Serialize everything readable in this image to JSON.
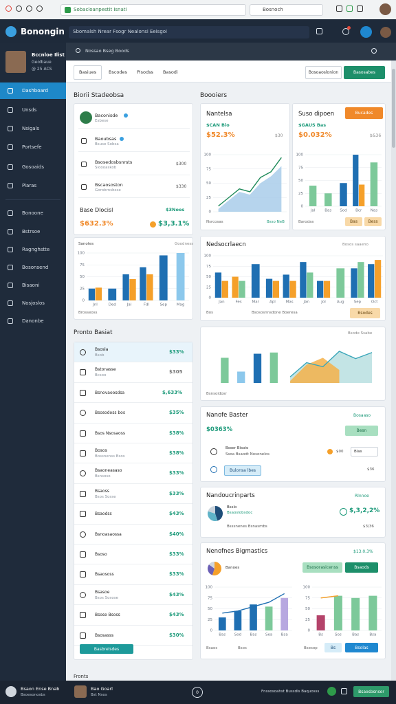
{
  "browser": {
    "url": "Sobacloanpestit Isnati",
    "search": "Bosnoch"
  },
  "sidebar": {
    "brand": "Bonongin",
    "user": {
      "name": "Bccnloe Ilist",
      "role": "Geolbaue",
      "id": "@ 25 ACS"
    },
    "menu": [
      "Dashboard",
      "Unsds",
      "Nsigals",
      "Portsefe",
      "Gosoaids",
      "Piaras",
      "Bonoone",
      "Bstrsoe",
      "Ragnghstte",
      "Bosonsend",
      "Bisaoni",
      "Nosjoslos",
      "Danonbe"
    ]
  },
  "header": {
    "search": "Sbomalsh Nrear Fsogr Nealonsi Eeisgoi"
  },
  "toolbar": {
    "search": "Nossao Bseg Boods",
    "tabs": [
      "Basiues",
      "Bscodes",
      "Pisodss",
      "Basodi"
    ],
    "buttons": [
      "Bosoaoslonion",
      "Basosabes"
    ]
  },
  "left": {
    "title": "Biorii Stadeobsa",
    "people": [
      {
        "name": "Baconisde",
        "sub": "Esbese"
      },
      {
        "name": "Baoubsas",
        "sub": "Bsuse Sobsa"
      },
      {
        "name": "Bsosedosbsnrsts",
        "sub": "Sioooaskob",
        "value": "$300"
      },
      {
        "name": "Bscaososton",
        "sub": "Gorobrnsbsse",
        "value": "$330"
      }
    ],
    "summary": {
      "title": "Base Dlocisl",
      "tag": "$3Noes",
      "value_a": "$632.3%",
      "value_b": "$3,3.1%"
    },
    "chart": {
      "title": "Sanotes",
      "note": "Goodness",
      "footer": "Brosseoss",
      "ylim": [
        0,
        100
      ],
      "yticks": [
        0,
        25,
        50,
        75,
        100
      ],
      "categories": [
        "Jnl",
        "Ded",
        "Jal",
        "Fdl",
        "Sep",
        "Mag"
      ],
      "series": [
        {
          "kind": "bar",
          "color": "#1f6fb2",
          "values": [
            25,
            25,
            55,
            70,
            95,
            null
          ]
        },
        {
          "kind": "bar",
          "color": "#f5a02a",
          "values": [
            27,
            null,
            45,
            55,
            null,
            null
          ]
        },
        {
          "kind": "bar",
          "color": "#8cc8ec",
          "values": [
            null,
            null,
            null,
            null,
            null,
            100
          ]
        }
      ]
    },
    "list": {
      "title": "Pronto Basiat",
      "button": "Basbrelsdes",
      "rows": [
        {
          "name": "Bsosla",
          "sub": "Bsob",
          "value": "$33%"
        },
        {
          "name": "Bstonasse",
          "sub": "Bcsoo",
          "value": "$305"
        },
        {
          "name": "Bsnovaoosdsa",
          "value": "$,633%"
        },
        {
          "name": "Bsosodoss bos",
          "value": "$35%"
        },
        {
          "name": "Bsos Nsosaoss",
          "value": "$38%"
        },
        {
          "name": "Bosos",
          "sub": "Bossnenss Bsos",
          "value": "$38%"
        },
        {
          "name": "Bsaoneasaso",
          "sub": "Bsnsoso",
          "value": "$33%"
        },
        {
          "name": "Bsaoss",
          "sub": "Bsos Sosse",
          "value": "$33%"
        },
        {
          "name": "Bsaodss",
          "value": "$43%"
        },
        {
          "name": "Bsnoasaossa",
          "value": "$40%"
        },
        {
          "name": "Bsoso",
          "value": "$33%"
        },
        {
          "name": "Bsaososs",
          "value": "$33%"
        },
        {
          "name": "Bsasoe",
          "sub": "Bsos Sosose",
          "value": "$43%"
        },
        {
          "name": "Bsose Bsoss",
          "value": "$43%"
        },
        {
          "name": "Bsosasss",
          "value": "$30%"
        }
      ]
    },
    "footnote": "Fronts"
  },
  "right": {
    "title": "Boooiers",
    "trend": {
      "title": "Nantelsa",
      "sub": "$CAN Bio",
      "value": "$52.3%",
      "note": "$30",
      "footer": "Nsrcosas",
      "footer_b": "Bsso NeB",
      "ylim": [
        0,
        100
      ],
      "yticks": [
        0,
        25,
        50,
        75,
        100
      ],
      "series": [
        {
          "kind": "area",
          "color": "#a9cdea",
          "values": [
            5,
            20,
            35,
            30,
            50,
            62,
            80
          ]
        },
        {
          "kind": "line",
          "color": "#1f8a5a",
          "values": [
            10,
            25,
            40,
            35,
            60,
            70,
            95
          ]
        }
      ]
    },
    "ranked": {
      "title": "Suso dipoen",
      "button": "Bucades",
      "sub": "$GAUS Bas",
      "value": "$0.032%",
      "note": "$&36",
      "footer": "Barodas",
      "buttons": [
        "Bas",
        "Bess"
      ],
      "ylim": [
        0,
        100
      ],
      "yticks": [
        0,
        25,
        50,
        75,
        100
      ],
      "categories": [
        "Jal",
        "Bas",
        "Sod",
        "Bcr",
        "Nas"
      ],
      "series": [
        {
          "kind": "bar",
          "color": "#7dc99a",
          "values": [
            40,
            25,
            null,
            null,
            85
          ]
        },
        {
          "kind": "bar",
          "color": "#1f6fb2",
          "values": [
            null,
            null,
            45,
            100,
            null
          ]
        },
        {
          "kind": "bar",
          "color": "#f5a02a",
          "values": [
            null,
            null,
            null,
            42,
            null
          ]
        }
      ]
    },
    "monthly": {
      "title": "Nedsocrlaecn",
      "note": "Bosos saaeno",
      "footer": "Bos",
      "footer_b": "Bsososnnsdone Boeresa",
      "button": "Bsodes",
      "ylim": [
        0,
        100
      ],
      "yticks": [
        0,
        25,
        50,
        75,
        100
      ],
      "categories": [
        "Jan",
        "Fes",
        "Mar",
        "Apl",
        "Mas",
        "Jan",
        "Jol",
        "Aug",
        "Sep",
        "Oct"
      ],
      "series": [
        {
          "kind": "bar",
          "color": "#1f6fb2",
          "values": [
            60,
            null,
            80,
            45,
            55,
            85,
            40,
            null,
            70,
            80
          ]
        },
        {
          "kind": "bar",
          "color": "#f5a02a",
          "values": [
            40,
            50,
            null,
            40,
            40,
            null,
            40,
            null,
            null,
            90
          ]
        },
        {
          "kind": "bar",
          "color": "#7dc99a",
          "values": [
            null,
            40,
            null,
            null,
            null,
            60,
            null,
            70,
            85,
            null
          ]
        }
      ]
    },
    "flow": {
      "note": "Bsode Ssabe",
      "footer": "Bsnsoidosr",
      "ylim": [
        0,
        100
      ],
      "series": [
        {
          "kind": "bar",
          "color": "#7dc99a",
          "colors": [
            "#7dc99a",
            "#8cc8ec",
            "#1f6fb2",
            "#7dc99a",
            "#7dc99a",
            "#7dc99a",
            "#7dc99a",
            "#7dc99a",
            "#7dc99a",
            "#7dc99a"
          ],
          "values": [
            62,
            28,
            72,
            75,
            null,
            null,
            null,
            null,
            null,
            null
          ]
        },
        {
          "kind": "area",
          "color": "#b8dfe0",
          "values": [
            null,
            null,
            null,
            null,
            15,
            50,
            40,
            78,
            60,
            75
          ]
        },
        {
          "kind": "area",
          "color": "#f5b24a",
          "values": [
            null,
            null,
            null,
            null,
            5,
            45,
            62,
            32,
            null,
            null
          ]
        },
        {
          "kind": "line",
          "color": "#3aa6b9",
          "values": [
            null,
            null,
            null,
            null,
            15,
            50,
            40,
            78,
            60,
            75
          ]
        }
      ]
    },
    "baster": {
      "title": "Nanofe Baster",
      "note": "Bosaaso",
      "value": "$0363%",
      "button": "Besn",
      "row": "Bsser Bisoio",
      "row_sub": "Ssoa Bsaodt Nosonelos",
      "toggle": "$00",
      "select": "Blas",
      "action": "Bulonsa lbes",
      "amount": "$36"
    },
    "parts": {
      "title": "Nandoucrinparts",
      "note": "Rlnnoe",
      "label": "Bsslo",
      "label_b": "Bsaoslobsdoc",
      "value": "$,3,2,2%",
      "row": "Bsssnenes Bsnasmbs",
      "amount": "$3/36",
      "values": [
        45,
        35,
        20
      ],
      "colors": [
        "#1f4e79",
        "#5fb3c8",
        "#c9d3dc"
      ]
    },
    "metrics": {
      "title": "Nenofnes Bigmastics",
      "note": "$13.0.3%",
      "buttons": [
        "Bsosorasicenss",
        "Bsaods"
      ],
      "label": "Banoes",
      "pie": {
        "values": [
          55,
          30,
          15
        ],
        "colors": [
          "#f5a02a",
          "#6b5fb5",
          "#cfd6de"
        ]
      },
      "chart_a": {
        "ylim": [
          0,
          100
        ],
        "yticks": [
          0,
          25,
          50,
          75,
          100
        ],
        "categories": [
          "Bas",
          "Sod",
          "Bas",
          "Sea",
          "Bsa"
        ],
        "series": [
          {
            "kind": "bar",
            "color": "#1f6fb2",
            "colors": [
              "#1f6fb2",
              "#1f6fb2",
              "#1f6fb2",
              "#7dc99a",
              "#b7a8e0"
            ],
            "values": [
              30,
              45,
              60,
              55,
              75
            ]
          },
          {
            "kind": "line",
            "color": "#1f6fb2",
            "values": [
              40,
              45,
              55,
              65,
              85
            ]
          }
        ]
      },
      "chart_b": {
        "ylim": [
          0,
          100
        ],
        "yticks": [
          0,
          25,
          50,
          75,
          100
        ],
        "categories": [
          "Bs",
          "Sos",
          "Bas",
          "Bsa"
        ],
        "series": [
          {
            "kind": "bar",
            "color": "#7dc99a",
            "colors": [
              "#b4436a",
              "#7dc99a",
              "#7dc99a",
              "#7dc99a"
            ],
            "values": [
              35,
              80,
              75,
              80
            ]
          },
          {
            "kind": "line",
            "color": "#f5a02a",
            "values": [
              75,
              80,
              null,
              null
            ]
          }
        ]
      },
      "footer": "Bsaos",
      "footer_b": "Bsos",
      "footer_c": "Bsesop",
      "actions": [
        "Bs",
        "Bsolas"
      ]
    }
  },
  "footer": {
    "name": "Bsaon Ense Bnab",
    "sub": "Bsoesonosbs",
    "user": "Bao Goarl",
    "user_sub": "Bst Nsos",
    "count": "0",
    "status": "Fnssosoahst Bussdls Baquosss",
    "button": "Bsaosbsnsor"
  }
}
